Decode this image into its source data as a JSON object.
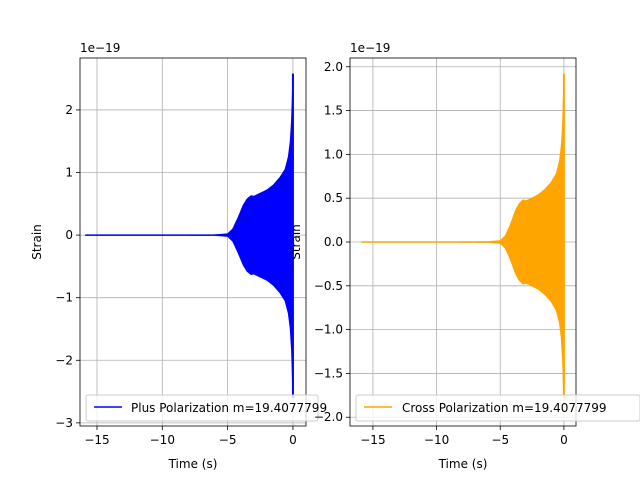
{
  "chart_data": [
    {
      "type": "line",
      "offset_text": "1e−19",
      "xlabel": "Time (s)",
      "ylabel": "Strain",
      "xlim": [
        -16.3,
        1.0
      ],
      "ylim": [
        -3.05,
        2.83
      ],
      "x_ticks": [
        -15,
        -10,
        -5,
        0
      ],
      "x_tick_labels": [
        "−15",
        "−10",
        "−5",
        "0"
      ],
      "y_ticks": [
        -3,
        -2,
        -1,
        0,
        1,
        2
      ],
      "y_tick_labels": [
        "−3",
        "−2",
        "−1",
        "0",
        "1",
        "2"
      ],
      "grid": true,
      "legend_position": "lower-left",
      "series": [
        {
          "name": "Plus Polarization m=19.4077799",
          "color": "#0000ff",
          "t_start": -15.9,
          "t_end": 0.0,
          "envelope": [
            [
              -15.9,
              0.0
            ],
            [
              -9.0,
              0.0
            ],
            [
              -6.0,
              0.003
            ],
            [
              -5.0,
              0.02
            ],
            [
              -4.6,
              0.1
            ],
            [
              -4.2,
              0.28
            ],
            [
              -3.8,
              0.48
            ],
            [
              -3.5,
              0.58
            ],
            [
              -3.2,
              0.63
            ],
            [
              -3.0,
              0.62
            ],
            [
              -2.8,
              0.64
            ],
            [
              -2.0,
              0.72
            ],
            [
              -1.5,
              0.8
            ],
            [
              -1.0,
              0.92
            ],
            [
              -0.6,
              1.05
            ],
            [
              -0.35,
              1.25
            ],
            [
              -0.2,
              1.5
            ],
            [
              -0.1,
              1.85
            ],
            [
              -0.05,
              2.2
            ],
            [
              0.0,
              2.58
            ]
          ],
          "peak_max": 2.58,
          "peak_min": -2.6
        }
      ]
    },
    {
      "type": "line",
      "offset_text": "1e−19",
      "xlabel": "Time (s)",
      "ylabel": "Strain",
      "xlim": [
        -16.8,
        0.95
      ],
      "ylim": [
        -2.1,
        2.1
      ],
      "x_ticks": [
        -15,
        -10,
        -5,
        0
      ],
      "x_tick_labels": [
        "−15",
        "−10",
        "−5",
        "0"
      ],
      "y_ticks": [
        -2.0,
        -1.5,
        -1.0,
        -0.5,
        0.0,
        0.5,
        1.0,
        1.5,
        2.0
      ],
      "y_tick_labels": [
        "−2.0",
        "−1.5",
        "−1.0",
        "−0.5",
        "0.0",
        "0.5",
        "1.0",
        "1.5",
        "2.0"
      ],
      "grid": true,
      "legend_position": "lower-left",
      "series": [
        {
          "name": "Cross Polarization m=19.4077799",
          "color": "#ffa500",
          "t_start": -15.9,
          "t_end": 0.0,
          "envelope": [
            [
              -15.9,
              0.0
            ],
            [
              -9.0,
              0.0
            ],
            [
              -6.0,
              0.003
            ],
            [
              -5.0,
              0.015
            ],
            [
              -4.6,
              0.07
            ],
            [
              -4.2,
              0.2
            ],
            [
              -3.8,
              0.36
            ],
            [
              -3.5,
              0.44
            ],
            [
              -3.2,
              0.48
            ],
            [
              -3.0,
              0.47
            ],
            [
              -2.8,
              0.48
            ],
            [
              -2.0,
              0.54
            ],
            [
              -1.5,
              0.6
            ],
            [
              -1.0,
              0.68
            ],
            [
              -0.6,
              0.78
            ],
            [
              -0.35,
              0.92
            ],
            [
              -0.2,
              1.1
            ],
            [
              -0.1,
              1.35
            ],
            [
              -0.05,
              1.6
            ],
            [
              0.0,
              1.92
            ]
          ],
          "peak_max": 1.92,
          "peak_min": -1.78
        }
      ]
    }
  ]
}
